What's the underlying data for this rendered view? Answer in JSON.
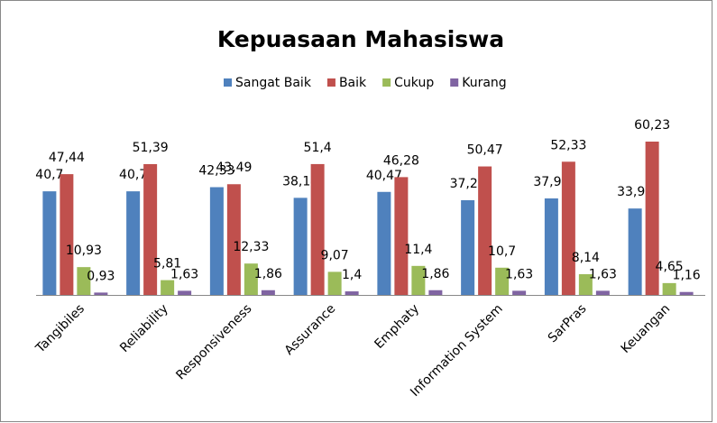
{
  "chart_data": {
    "type": "bar",
    "title": "Kepuasaan Mahasiswa",
    "categories": [
      "Tangibiles",
      "Reliability",
      "Responsiveness",
      "Assurance",
      "Emphaty",
      "Information System",
      "SarPras",
      "Keuangan"
    ],
    "series": [
      {
        "name": "Sangat Baik",
        "color": "#4f81bd",
        "values": [
          40.7,
          40.7,
          42.33,
          38.14,
          40.47,
          37.21,
          37.91,
          33.95
        ],
        "value_labels": [
          "40,7",
          "40,7",
          "42,33",
          "38,14",
          "40,47",
          "37,21",
          "37,91",
          "33,95"
        ]
      },
      {
        "name": "Baik",
        "color": "#c0504d",
        "values": [
          47.44,
          51.39,
          43.49,
          51.4,
          46.28,
          50.47,
          52.33,
          60.23
        ],
        "value_labels": [
          "47,44",
          "51,39",
          "43,49",
          "51,4",
          "46,28",
          "50,47",
          "52,33",
          "60,23"
        ]
      },
      {
        "name": "Cukup",
        "color": "#9bbb59",
        "values": [
          10.93,
          5.81,
          12.33,
          9.07,
          11.4,
          10.7,
          8.14,
          4.65
        ],
        "value_labels": [
          "10,93",
          "5,81",
          "12,33",
          "9,07",
          "11,4",
          "10,7",
          "8,14",
          "4,65"
        ]
      },
      {
        "name": "Kurang",
        "color": "#8064a2",
        "values": [
          0.93,
          1.63,
          1.86,
          1.4,
          1.86,
          1.63,
          1.63,
          1.16
        ],
        "value_labels": [
          "0,93",
          "1,63",
          "1,86",
          "1,4",
          "1,86",
          "1,63",
          "1,63",
          "1,16"
        ]
      }
    ],
    "legend": "top"
  }
}
